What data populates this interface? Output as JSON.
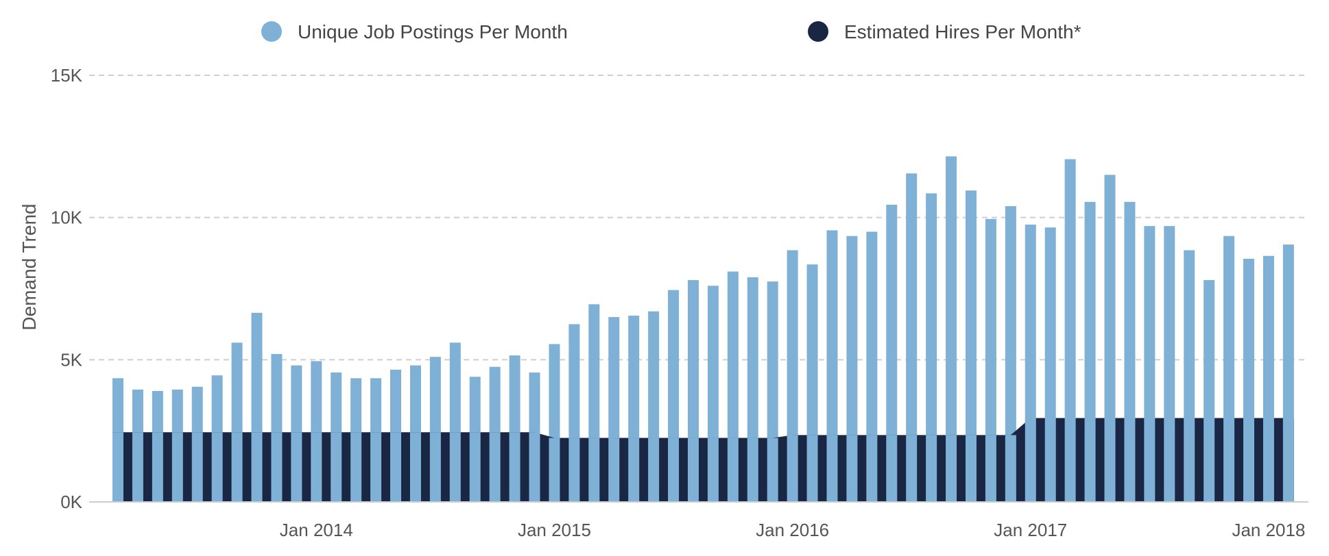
{
  "chart_data": {
    "type": "bar",
    "ylabel": "Demand Trend",
    "ylim": [
      0,
      15000
    ],
    "grid": true,
    "legend_position": "top",
    "y_ticks": [
      "0K",
      "5K",
      "10K",
      "15K"
    ],
    "x_tick_labels": [
      "Jan 2014",
      "Jan 2015",
      "Jan 2016",
      "Jan 2017",
      "Jan 2018"
    ],
    "months": [
      "2013-03",
      "2013-04",
      "2013-05",
      "2013-06",
      "2013-07",
      "2013-08",
      "2013-09",
      "2013-10",
      "2013-11",
      "2013-12",
      "2014-01",
      "2014-02",
      "2014-03",
      "2014-04",
      "2014-05",
      "2014-06",
      "2014-07",
      "2014-08",
      "2014-09",
      "2014-10",
      "2014-11",
      "2014-12",
      "2015-01",
      "2015-02",
      "2015-03",
      "2015-04",
      "2015-05",
      "2015-06",
      "2015-07",
      "2015-08",
      "2015-09",
      "2015-10",
      "2015-11",
      "2015-12",
      "2016-01",
      "2016-02",
      "2016-03",
      "2016-04",
      "2016-05",
      "2016-06",
      "2016-07",
      "2016-08",
      "2016-09",
      "2016-10",
      "2016-11",
      "2016-12",
      "2017-01",
      "2017-02",
      "2017-03",
      "2017-04",
      "2017-05",
      "2017-06",
      "2017-07",
      "2017-08",
      "2017-09",
      "2017-10",
      "2017-11",
      "2017-12",
      "2018-01",
      "2018-02"
    ],
    "series": [
      {
        "name": "Unique Job Postings Per Month",
        "color": "#7fb0d6",
        "values": [
          4350,
          3950,
          3900,
          3950,
          4050,
          4450,
          5600,
          6650,
          5200,
          4800,
          4950,
          4550,
          4350,
          4350,
          4650,
          4800,
          5100,
          5600,
          4400,
          4750,
          5150,
          4550,
          5550,
          6250,
          6950,
          6500,
          6550,
          6700,
          7450,
          7800,
          7600,
          8100,
          7900,
          7750,
          8850,
          8350,
          9550,
          9350,
          9500,
          10450,
          11550,
          10850,
          12150,
          10950,
          9950,
          10400,
          9750,
          9650,
          12050,
          10550,
          11500,
          10550,
          9700,
          9700,
          8850,
          7800,
          9350,
          8550,
          8650,
          9050
        ]
      },
      {
        "name": "Estimated Hires Per Month*",
        "color": "#1a2744",
        "values": [
          2450,
          2450,
          2450,
          2450,
          2450,
          2450,
          2450,
          2450,
          2450,
          2450,
          2450,
          2450,
          2450,
          2450,
          2450,
          2450,
          2450,
          2450,
          2450,
          2450,
          2450,
          2450,
          2250,
          2250,
          2250,
          2250,
          2250,
          2250,
          2250,
          2250,
          2250,
          2250,
          2250,
          2250,
          2350,
          2350,
          2350,
          2350,
          2350,
          2350,
          2350,
          2350,
          2350,
          2350,
          2350,
          2350,
          2950,
          2950,
          2950,
          2950,
          2950,
          2950,
          2950,
          2950,
          2950,
          2950,
          2950,
          2950,
          2950,
          2950
        ]
      }
    ]
  }
}
